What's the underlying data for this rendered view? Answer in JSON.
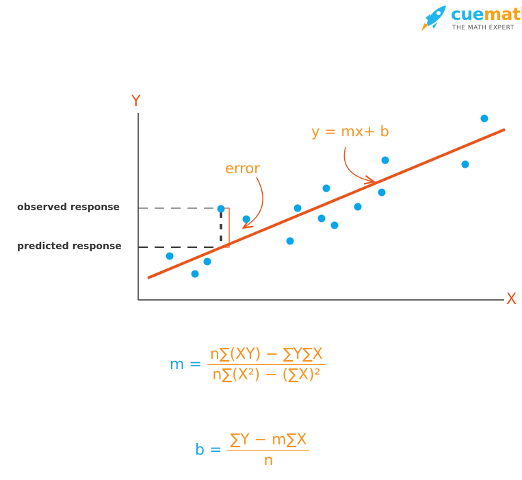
{
  "brand": {
    "name_part1": "cue",
    "name_part2": "math",
    "tagline": "THE MATH EXPERT",
    "colors": {
      "blue": "#1fb6f0",
      "orange": "#f7a21b"
    }
  },
  "diagram": {
    "y_axis_label": "Y",
    "x_axis_label": "X",
    "observed_label": "observed response",
    "predicted_label": "predicted response",
    "error_label": "error",
    "line_label": "y = mx+ b",
    "colors": {
      "line": "#e8541a",
      "points": "#0aa5e8",
      "annotation": "#f7931e"
    }
  },
  "formulas": {
    "m_var": "m =",
    "m_numerator": "n∑(XY) − ∑Y∑X",
    "m_denominator": "n∑(X²) − (∑X)²",
    "b_var": "b =",
    "b_numerator": "∑Y − m∑X",
    "b_denominator": "n"
  }
}
